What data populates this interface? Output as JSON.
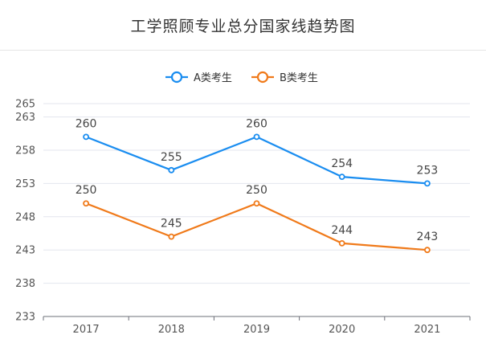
{
  "chart_data": {
    "type": "line",
    "title": "工学照顾专业总分国家线趋势图",
    "categories": [
      "2017",
      "2018",
      "2019",
      "2020",
      "2021"
    ],
    "series": [
      {
        "name": "A类考生",
        "color": "#1a8df0",
        "values": [
          260,
          255,
          260,
          254,
          253
        ]
      },
      {
        "name": "B类考生",
        "color": "#f07a1a",
        "values": [
          250,
          245,
          250,
          244,
          243
        ]
      }
    ],
    "yticks": [
      233,
      238,
      243,
      248,
      253,
      258,
      263,
      265
    ],
    "ylim": [
      233,
      265
    ],
    "grid": true,
    "legend_position": "top"
  }
}
